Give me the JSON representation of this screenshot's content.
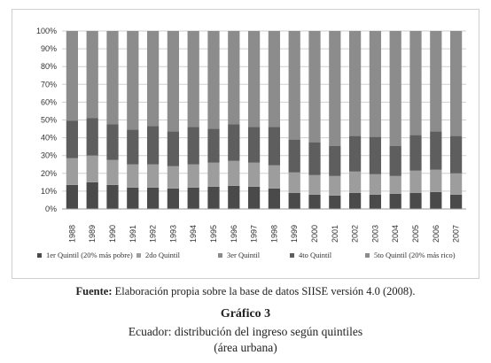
{
  "chart_data": {
    "type": "bar",
    "stacked": true,
    "normalized": true,
    "categories": [
      "1988",
      "1989",
      "1990",
      "1991",
      "1992",
      "1993",
      "1994",
      "1995",
      "1996",
      "1997",
      "1998",
      "1999",
      "2000",
      "2001",
      "2002",
      "2003",
      "2004",
      "2005",
      "2006",
      "2007"
    ],
    "y_ticks": [
      "0%",
      "10%",
      "20%",
      "30%",
      "40%",
      "50%",
      "60%",
      "70%",
      "80%",
      "90%",
      "100%"
    ],
    "ylim": [
      0,
      100
    ],
    "grid": true,
    "legend_position": "bottom",
    "series": [
      {
        "name": "1er Quintil (20% más pobre)",
        "color": "#4a4a4a",
        "values": [
          13.5,
          15,
          13.5,
          12,
          12,
          11.5,
          12,
          12.5,
          13,
          12.5,
          11.5,
          9,
          8,
          7.5,
          9,
          8,
          8.5,
          9,
          9.5,
          8
        ]
      },
      {
        "name": "2do Quintil",
        "color": "#9d9d9d",
        "values": [
          15,
          15,
          14,
          13,
          13,
          12.5,
          13,
          13.5,
          14,
          13.5,
          13,
          11.5,
          11,
          11,
          12,
          11.5,
          10,
          12.5,
          12.5,
          12
        ]
      },
      {
        "name": "3er Quintil",
        "color": "#8a8a8a",
        "values": [
          0,
          0,
          0,
          0,
          0,
          0,
          0,
          0,
          0,
          0,
          0,
          0,
          0,
          0,
          0,
          0,
          0,
          0,
          0,
          0
        ]
      },
      {
        "name": "4to Quintil",
        "color": "#5e5e5e",
        "values": [
          21,
          21,
          20,
          19.5,
          21.5,
          19.5,
          21,
          19,
          20.5,
          20,
          21.5,
          18.5,
          18.5,
          17,
          20,
          21,
          17,
          20,
          21.5,
          21
        ]
      },
      {
        "name": "5to Quintil (20% más rico)",
        "color": "#8c8c8c",
        "values": [
          50.5,
          49,
          52.5,
          55.5,
          53.5,
          56.5,
          54,
          55,
          52.5,
          54,
          54,
          61,
          62.5,
          64.5,
          59,
          59.5,
          64.5,
          58.5,
          56.5,
          59
        ]
      }
    ]
  },
  "source": {
    "label": "Fuente:",
    "text": "Elaboración propia sobre la base de datos SIISE versión 4.0 (2008)."
  },
  "caption": {
    "number": "Gráfico 3",
    "title": "Ecuador: distribución del ingreso según quintiles",
    "subtitle": "(área urbana)"
  }
}
